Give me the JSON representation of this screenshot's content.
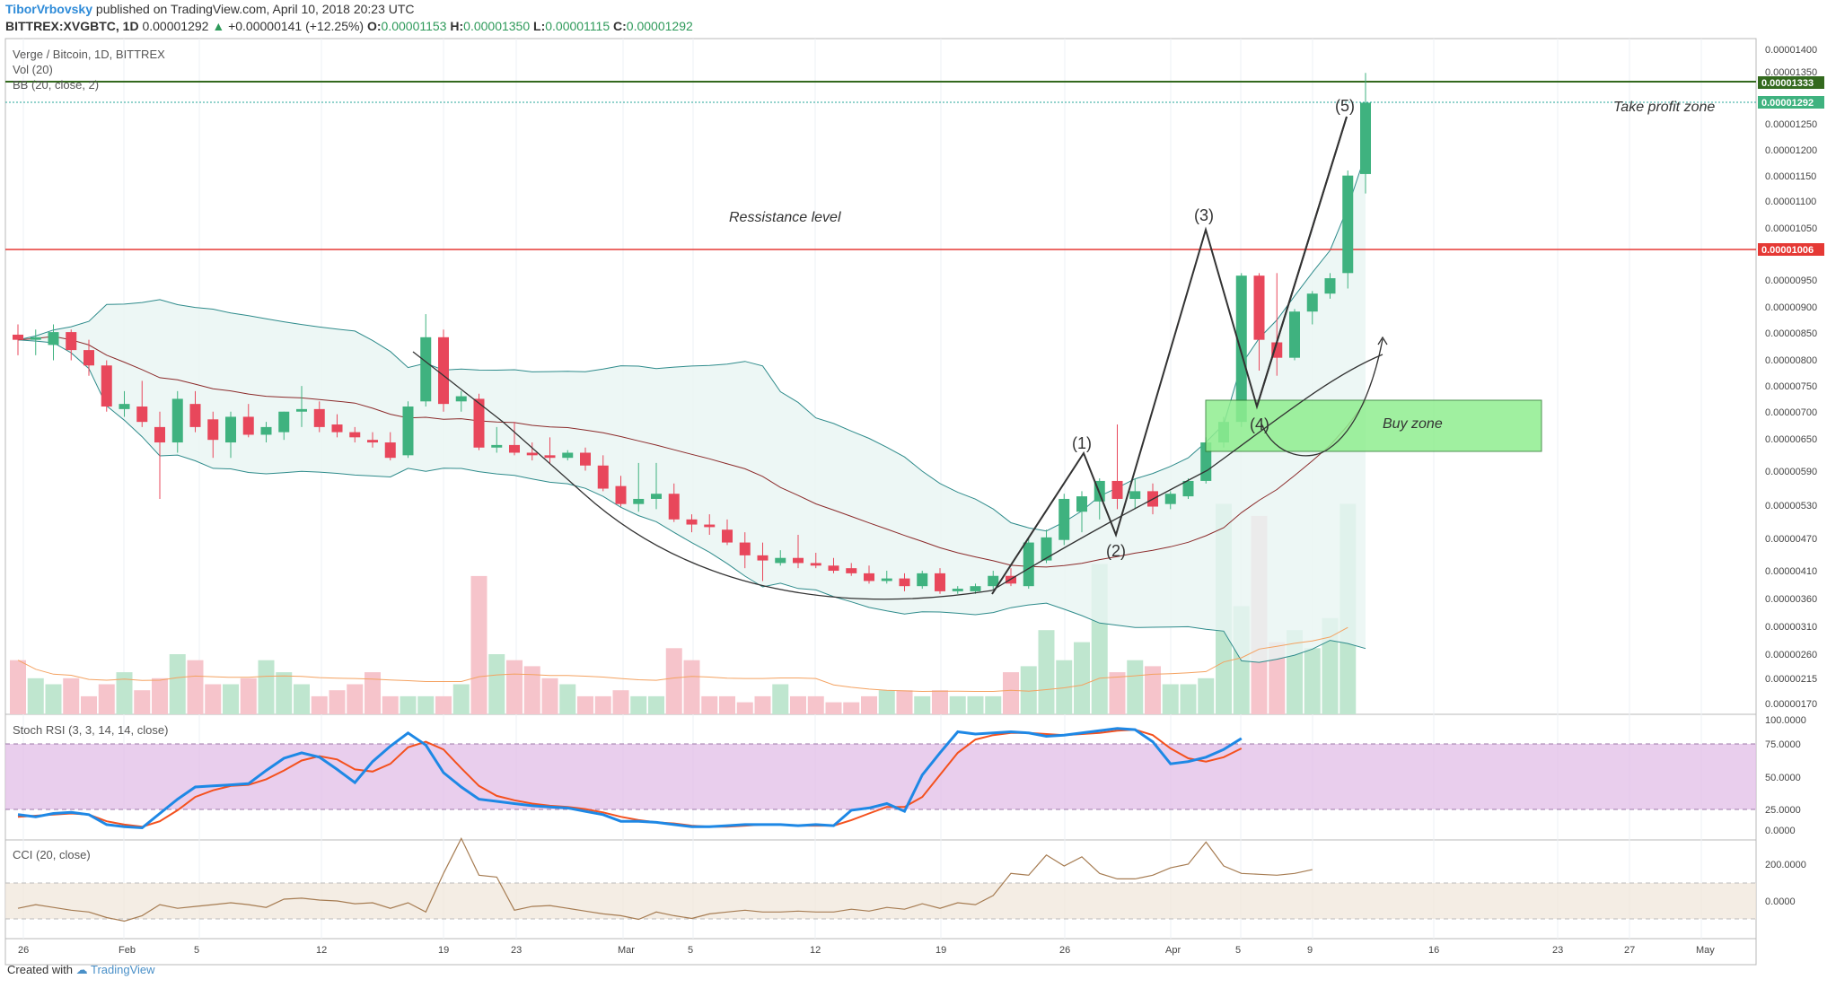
{
  "header": {
    "author": "TiborVrbovsky",
    "published": "published on TradingView.com, April 10, 2018 20:23 UTC",
    "symbol": "BITTREX:XVGBTC, 1D",
    "last": "0.00001292",
    "change": "+0.00000141 (+12.25%)",
    "o_label": "O:",
    "o": "0.00001153",
    "h_label": "H:",
    "h": "0.00001350",
    "l_label": "L:",
    "l": "0.00001115",
    "c_label": "C:",
    "c": "0.00001292"
  },
  "pane_labels": {
    "title": "Verge / Bitcoin, 1D, BITTREX",
    "vol": "Vol (20)",
    "bb": "BB (20, close, 2)",
    "stoch": "Stoch RSI (3, 3, 14, 14, close)",
    "cci": "CCI (20, close)"
  },
  "annotations": {
    "resistance": "Ressistance level",
    "take_profit": "Take profit zone",
    "buy_zone": "Buy zone",
    "w1": "(1)",
    "w2": "(2)",
    "w3": "(3)",
    "w4": "(4)",
    "w5": "(5)"
  },
  "footer": {
    "created": "Created with",
    "brand": "TradingView"
  },
  "colors": {
    "up": "#3fb27f",
    "down": "#e8475b",
    "resistance": "#e53935",
    "takeprofit": "#33691e",
    "bb_band": "#2e8b8b",
    "bb_basis": "#8b2a2a",
    "stoch_k": "#1e88e5",
    "stoch_d": "#f4511e",
    "cci": "#a67c52",
    "buy_zone": "#90ee90"
  },
  "chart_data": {
    "type": "candlestick",
    "price_axis": {
      "ticks": [
        "0.00001400",
        "0.00001350",
        "0.00001250",
        "0.00001200",
        "0.00001150",
        "0.00001100",
        "0.00001050",
        "0.00000950",
        "0.00000900",
        "0.00000850",
        "0.00000800",
        "0.00000750",
        "0.00000700",
        "0.00000650",
        "0.00000590",
        "0.00000530",
        "0.00000470",
        "0.00000410",
        "0.00000360",
        "0.00000310",
        "0.00000260",
        "0.00000215",
        "0.00000170"
      ],
      "resistance": "0.00001006",
      "take_profit": "0.00001333",
      "last_price": "0.00001292"
    },
    "stoch_axis": [
      "100.0000",
      "75.0000",
      "50.0000",
      "25.0000",
      "0.0000"
    ],
    "cci_axis": [
      "200.0000",
      "0.0000"
    ],
    "time_axis": [
      "26",
      "Feb",
      "5",
      "12",
      "19",
      "23",
      "Mar",
      "5",
      "12",
      "19",
      "26",
      "Apr",
      "5",
      "9",
      "16",
      "23",
      "27",
      "May"
    ],
    "candles": [
      {
        "o": 8.4,
        "h": 8.6,
        "l": 8.0,
        "c": 8.3
      },
      {
        "o": 8.3,
        "h": 8.5,
        "l": 8.0,
        "c": 8.35
      },
      {
        "o": 8.2,
        "h": 8.6,
        "l": 7.9,
        "c": 8.45
      },
      {
        "o": 8.45,
        "h": 8.5,
        "l": 7.9,
        "c": 8.1
      },
      {
        "o": 8.1,
        "h": 8.3,
        "l": 7.6,
        "c": 7.8
      },
      {
        "o": 7.8,
        "h": 7.9,
        "l": 6.9,
        "c": 7.0
      },
      {
        "o": 6.95,
        "h": 7.3,
        "l": 6.8,
        "c": 7.05
      },
      {
        "o": 7.0,
        "h": 7.5,
        "l": 6.6,
        "c": 6.7
      },
      {
        "o": 6.6,
        "h": 6.9,
        "l": 5.2,
        "c": 6.3
      },
      {
        "o": 6.3,
        "h": 7.3,
        "l": 6.1,
        "c": 7.15
      },
      {
        "o": 7.05,
        "h": 7.3,
        "l": 6.5,
        "c": 6.6
      },
      {
        "o": 6.75,
        "h": 6.9,
        "l": 6.0,
        "c": 6.35
      },
      {
        "o": 6.3,
        "h": 6.9,
        "l": 6.0,
        "c": 6.8
      },
      {
        "o": 6.8,
        "h": 7.05,
        "l": 6.4,
        "c": 6.45
      },
      {
        "o": 6.45,
        "h": 6.7,
        "l": 6.3,
        "c": 6.6
      },
      {
        "o": 6.5,
        "h": 6.9,
        "l": 6.35,
        "c": 6.9
      },
      {
        "o": 6.9,
        "h": 7.4,
        "l": 6.6,
        "c": 6.95
      },
      {
        "o": 6.95,
        "h": 7.1,
        "l": 6.5,
        "c": 6.6
      },
      {
        "o": 6.65,
        "h": 6.85,
        "l": 6.4,
        "c": 6.5
      },
      {
        "o": 6.5,
        "h": 6.6,
        "l": 6.3,
        "c": 6.4
      },
      {
        "o": 6.35,
        "h": 6.5,
        "l": 6.2,
        "c": 6.3
      },
      {
        "o": 6.3,
        "h": 6.5,
        "l": 5.95,
        "c": 6.0
      },
      {
        "o": 6.05,
        "h": 7.1,
        "l": 6.0,
        "c": 7.0
      },
      {
        "o": 7.1,
        "h": 8.8,
        "l": 7.0,
        "c": 8.35
      },
      {
        "o": 8.35,
        "h": 8.5,
        "l": 6.9,
        "c": 7.05
      },
      {
        "o": 7.1,
        "h": 7.3,
        "l": 6.9,
        "c": 7.2
      },
      {
        "o": 7.15,
        "h": 7.25,
        "l": 6.15,
        "c": 6.2
      },
      {
        "o": 6.2,
        "h": 6.6,
        "l": 6.1,
        "c": 6.25
      },
      {
        "o": 6.25,
        "h": 6.7,
        "l": 6.05,
        "c": 6.1
      },
      {
        "o": 6.1,
        "h": 6.3,
        "l": 5.95,
        "c": 6.05
      },
      {
        "o": 6.05,
        "h": 6.4,
        "l": 5.9,
        "c": 6.0
      },
      {
        "o": 6.0,
        "h": 6.15,
        "l": 5.95,
        "c": 6.1
      },
      {
        "o": 6.1,
        "h": 6.2,
        "l": 5.75,
        "c": 5.85
      },
      {
        "o": 5.85,
        "h": 6.05,
        "l": 5.35,
        "c": 5.4
      },
      {
        "o": 5.45,
        "h": 5.65,
        "l": 5.05,
        "c": 5.1
      },
      {
        "o": 5.1,
        "h": 5.9,
        "l": 4.95,
        "c": 5.2
      },
      {
        "o": 5.2,
        "h": 5.9,
        "l": 5.0,
        "c": 5.3
      },
      {
        "o": 5.3,
        "h": 5.5,
        "l": 4.75,
        "c": 4.8
      },
      {
        "o": 4.8,
        "h": 4.9,
        "l": 4.55,
        "c": 4.7
      },
      {
        "o": 4.7,
        "h": 4.9,
        "l": 4.5,
        "c": 4.65
      },
      {
        "o": 4.6,
        "h": 4.8,
        "l": 4.3,
        "c": 4.35
      },
      {
        "o": 4.35,
        "h": 4.55,
        "l": 3.85,
        "c": 4.1
      },
      {
        "o": 4.1,
        "h": 4.35,
        "l": 3.6,
        "c": 4.0
      },
      {
        "o": 3.95,
        "h": 4.2,
        "l": 3.9,
        "c": 4.05
      },
      {
        "o": 4.05,
        "h": 4.5,
        "l": 3.85,
        "c": 3.95
      },
      {
        "o": 3.95,
        "h": 4.15,
        "l": 3.85,
        "c": 3.9
      },
      {
        "o": 3.9,
        "h": 4.05,
        "l": 3.75,
        "c": 3.8
      },
      {
        "o": 3.85,
        "h": 3.95,
        "l": 3.7,
        "c": 3.75
      },
      {
        "o": 3.75,
        "h": 3.9,
        "l": 3.55,
        "c": 3.6
      },
      {
        "o": 3.6,
        "h": 3.8,
        "l": 3.55,
        "c": 3.65
      },
      {
        "o": 3.65,
        "h": 3.75,
        "l": 3.4,
        "c": 3.5
      },
      {
        "o": 3.5,
        "h": 3.8,
        "l": 3.45,
        "c": 3.75
      },
      {
        "o": 3.75,
        "h": 3.85,
        "l": 3.35,
        "c": 3.4
      },
      {
        "o": 3.4,
        "h": 3.5,
        "l": 3.35,
        "c": 3.45
      },
      {
        "o": 3.4,
        "h": 3.55,
        "l": 3.35,
        "c": 3.5
      },
      {
        "o": 3.5,
        "h": 3.8,
        "l": 3.45,
        "c": 3.7
      },
      {
        "o": 3.7,
        "h": 3.85,
        "l": 3.5,
        "c": 3.55
      },
      {
        "o": 3.5,
        "h": 4.45,
        "l": 3.45,
        "c": 4.35
      },
      {
        "o": 4.0,
        "h": 4.6,
        "l": 3.95,
        "c": 4.45
      },
      {
        "o": 4.4,
        "h": 5.3,
        "l": 4.3,
        "c": 5.2
      },
      {
        "o": 4.95,
        "h": 5.35,
        "l": 4.55,
        "c": 5.25
      },
      {
        "o": 5.15,
        "h": 5.6,
        "l": 4.8,
        "c": 5.55
      },
      {
        "o": 5.55,
        "h": 6.65,
        "l": 5.0,
        "c": 5.2
      },
      {
        "o": 5.2,
        "h": 5.6,
        "l": 5.0,
        "c": 5.35
      },
      {
        "o": 5.35,
        "h": 5.5,
        "l": 4.9,
        "c": 5.05
      },
      {
        "o": 5.1,
        "h": 5.35,
        "l": 5.0,
        "c": 5.3
      },
      {
        "o": 5.25,
        "h": 5.6,
        "l": 5.2,
        "c": 5.55
      },
      {
        "o": 5.55,
        "h": 6.4,
        "l": 5.5,
        "c": 6.3
      },
      {
        "o": 6.3,
        "h": 6.8,
        "l": 6.2,
        "c": 6.7
      },
      {
        "o": 6.7,
        "h": 9.6,
        "l": 6.6,
        "c": 9.55
      },
      {
        "o": 9.55,
        "h": 9.6,
        "l": 7.7,
        "c": 8.3
      },
      {
        "o": 8.25,
        "h": 9.6,
        "l": 7.6,
        "c": 7.95
      },
      {
        "o": 7.95,
        "h": 8.9,
        "l": 7.9,
        "c": 8.85
      },
      {
        "o": 8.85,
        "h": 9.25,
        "l": 8.6,
        "c": 9.2
      },
      {
        "o": 9.2,
        "h": 9.6,
        "l": 9.1,
        "c": 9.5
      },
      {
        "o": 9.6,
        "h": 11.6,
        "l": 9.3,
        "c": 11.5
      },
      {
        "o": 11.53,
        "h": 13.5,
        "l": 11.15,
        "c": 12.92
      }
    ],
    "volume": [
      0.9,
      0.6,
      0.5,
      0.6,
      0.3,
      0.5,
      0.7,
      0.4,
      0.6,
      1.0,
      0.9,
      0.5,
      0.5,
      0.6,
      0.9,
      0.7,
      0.5,
      0.3,
      0.4,
      0.5,
      0.7,
      0.3,
      0.3,
      0.3,
      0.3,
      0.5,
      2.3,
      1.0,
      0.9,
      0.8,
      0.6,
      0.5,
      0.3,
      0.3,
      0.4,
      0.3,
      0.3,
      1.1,
      0.9,
      0.3,
      0.3,
      0.2,
      0.3,
      0.5,
      0.3,
      0.3,
      0.2,
      0.2,
      0.3,
      0.4,
      0.4,
      0.3,
      0.4,
      0.3,
      0.3,
      0.3,
      0.7,
      0.8,
      1.4,
      0.9,
      1.2,
      2.5,
      0.7,
      0.9,
      0.8,
      0.5,
      0.5,
      0.6,
      3.5,
      1.8,
      3.3,
      1.2,
      1.4,
      1.1,
      1.6,
      3.5
    ],
    "stoch_k": [
      14,
      12,
      15,
      16,
      14,
      5,
      3,
      2,
      15,
      28,
      39,
      40,
      41,
      42,
      54,
      65,
      70,
      66,
      55,
      43,
      62,
      76,
      88,
      77,
      52,
      39,
      28,
      26,
      24,
      22,
      21,
      20,
      17,
      14,
      8,
      8,
      7,
      5,
      3,
      3,
      4,
      5,
      5,
      5,
      4,
      5,
      4,
      18,
      20,
      24,
      17,
      50,
      70,
      89,
      87,
      88,
      89,
      88,
      85,
      86,
      88,
      90,
      92,
      91,
      80,
      60,
      62,
      66,
      73,
      83
    ],
    "stoch_d": [
      12,
      13,
      14,
      15,
      14,
      8,
      5,
      3,
      8,
      18,
      30,
      36,
      40,
      41,
      46,
      54,
      63,
      67,
      64,
      55,
      53,
      60,
      75,
      80,
      73,
      56,
      40,
      31,
      27,
      24,
      22,
      21,
      19,
      16,
      12,
      9,
      7,
      6,
      4,
      3,
      3,
      4,
      5,
      5,
      4,
      4,
      4,
      9,
      15,
      21,
      21,
      30,
      50,
      70,
      82,
      86,
      88,
      88,
      87,
      86,
      87,
      88,
      90,
      91,
      86,
      74,
      65,
      62,
      66,
      74
    ],
    "cci": [
      -40,
      -20,
      -35,
      -50,
      -60,
      -90,
      -110,
      -80,
      -20,
      -40,
      -30,
      -20,
      -10,
      -20,
      -35,
      10,
      15,
      5,
      0,
      -15,
      -10,
      -40,
      -10,
      -60,
      150,
      340,
      140,
      130,
      -50,
      -30,
      -25,
      -40,
      -55,
      -70,
      -80,
      -100,
      -60,
      -80,
      -95,
      -70,
      -60,
      -50,
      -60,
      -60,
      -55,
      -60,
      -60,
      -45,
      -55,
      -35,
      -45,
      -15,
      -40,
      -10,
      -20,
      30,
      150,
      140,
      250,
      190,
      240,
      150,
      120,
      120,
      140,
      180,
      200,
      320,
      190,
      150,
      145,
      140,
      150,
      170
    ]
  }
}
